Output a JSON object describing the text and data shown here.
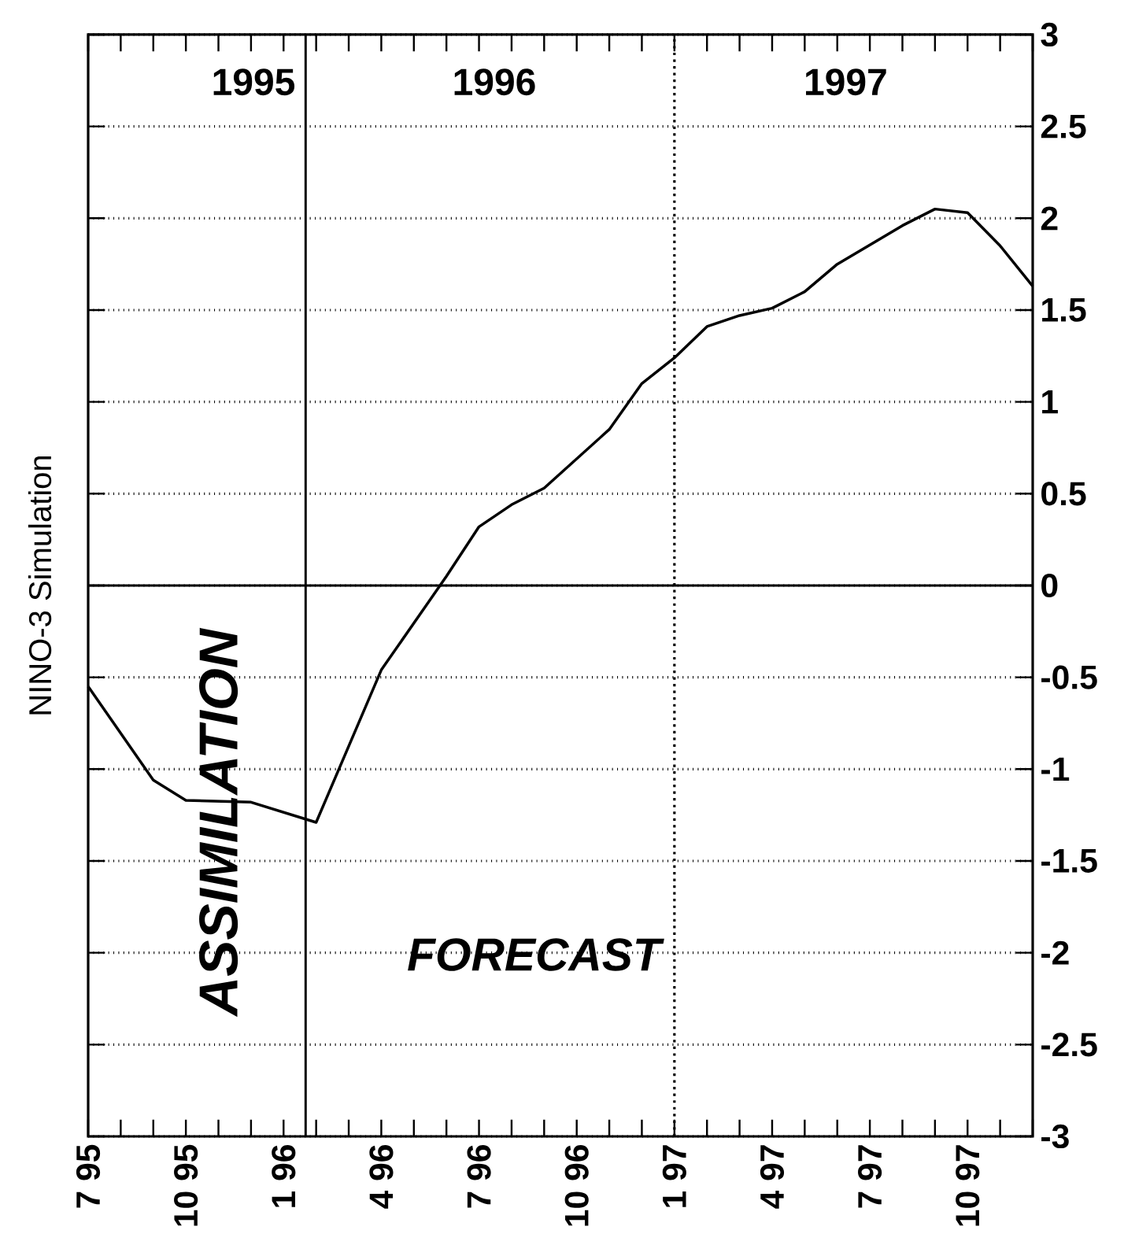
{
  "chart_data": {
    "type": "line",
    "ylabel": "NINO-3 Simulation",
    "annotations": [
      "1995",
      "1996",
      "1997",
      "ASSIMILATION",
      "FORECAST"
    ],
    "x": [
      "1995-07",
      "1995-09",
      "1995-10",
      "1995-12",
      "1996-02",
      "1996-04",
      "1996-06",
      "1996-07",
      "1996-08",
      "1996-09",
      "1996-11",
      "1996-12",
      "1997-01",
      "1997-02",
      "1997-03",
      "1997-04",
      "1997-05",
      "1997-06",
      "1997-08",
      "1997-09",
      "1997-10",
      "1997-11",
      "1997-12"
    ],
    "series": [
      {
        "color": "#000000",
        "values": [
          -0.55,
          -1.06,
          -1.17,
          -1.18,
          -1.29,
          -0.46,
          0.05,
          0.32,
          0.44,
          0.53,
          0.85,
          1.1,
          1.24,
          1.41,
          1.47,
          1.51,
          1.6,
          1.75,
          1.96,
          2.05,
          2.03,
          1.85,
          1.63
        ]
      }
    ],
    "xlim": [
      "1995-07",
      "1997-12"
    ],
    "xticks": [
      {
        "value": "1995-07",
        "label": "7 95"
      },
      {
        "value": "1995-08",
        "label": null
      },
      {
        "value": "1995-09",
        "label": null
      },
      {
        "value": "1995-10",
        "label": "10 95"
      },
      {
        "value": "1995-11",
        "label": null
      },
      {
        "value": "1995-12",
        "label": null
      },
      {
        "value": "1996-01",
        "label": "1 96"
      },
      {
        "value": "1996-02",
        "label": null
      },
      {
        "value": "1996-03",
        "label": null
      },
      {
        "value": "1996-04",
        "label": "4 96"
      },
      {
        "value": "1996-05",
        "label": null
      },
      {
        "value": "1996-06",
        "label": null
      },
      {
        "value": "1996-07",
        "label": "7 96"
      },
      {
        "value": "1996-08",
        "label": null
      },
      {
        "value": "1996-09",
        "label": null
      },
      {
        "value": "1996-10",
        "label": "10 96"
      },
      {
        "value": "1996-11",
        "label": null
      },
      {
        "value": "1996-12",
        "label": null
      },
      {
        "value": "1997-01",
        "label": "1 97"
      },
      {
        "value": "1997-02",
        "label": null
      },
      {
        "value": "1997-03",
        "label": null
      },
      {
        "value": "1997-04",
        "label": "4 97"
      },
      {
        "value": "1997-05",
        "label": null
      },
      {
        "value": "1997-06",
        "label": null
      },
      {
        "value": "1997-07",
        "label": "7 97"
      },
      {
        "value": "1997-08",
        "label": null
      },
      {
        "value": "1997-09",
        "label": null
      },
      {
        "value": "1997-10",
        "label": "10 97"
      },
      {
        "value": "1997-11",
        "label": null
      },
      {
        "value": "1997-12",
        "label": null
      }
    ],
    "ylim": [
      -3,
      3
    ],
    "yticks": [
      -3,
      -2.5,
      -2,
      -1.5,
      -1,
      -0.5,
      0,
      0.5,
      1,
      1.5,
      2,
      2.5,
      3
    ],
    "ref_lines": [
      {
        "axis": "x",
        "value": "1996-01-22",
        "color": "#000000",
        "line_style": "solid"
      },
      {
        "axis": "x",
        "value": "1997-01",
        "color": "#000000",
        "line_style": "dotted"
      },
      {
        "axis": "y",
        "value": 0,
        "color": "#000000",
        "line_style": "solid"
      }
    ],
    "grid": "y",
    "marker": "none",
    "line_style": "solid"
  }
}
